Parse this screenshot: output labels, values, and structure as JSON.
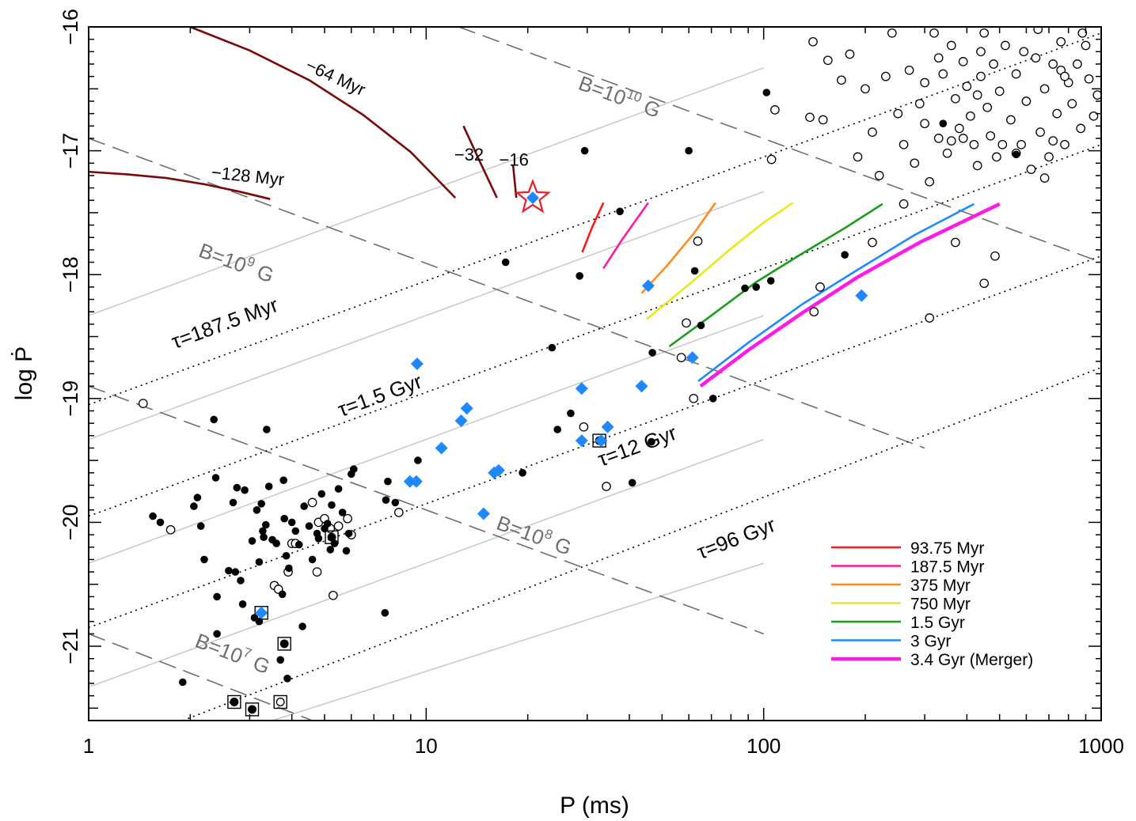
{
  "chart_data": {
    "type": "scatter",
    "xlabel": "P (ms)",
    "ylabel": "log Ṗ",
    "xscale": "log",
    "xlim": [
      1,
      1000
    ],
    "ylim": [
      -21.6,
      -16
    ],
    "x_ticks": [
      "1",
      "10",
      "100",
      "1000"
    ],
    "y_ticks": [
      "−16",
      "−17",
      "−18",
      "−19",
      "−20",
      "−21"
    ],
    "colors": {
      "filled": "#000000",
      "open": "#000000",
      "diamond": "#1e88ff",
      "star": "#e8202a",
      "field_line": "#6e6e6e",
      "age_line": "#000000",
      "grey_line": "#c8c8c8",
      "backward_track": "#7a0a0a"
    },
    "field_lines": [
      {
        "label_base": "B=10",
        "label_exp": "7",
        "label_unit": "G",
        "x": [
          1,
          4.6
        ],
        "y": [
          -20.9,
          -21.6
        ]
      },
      {
        "label_base": "B=10",
        "label_exp": "8",
        "label_unit": "G",
        "x": [
          1,
          100
        ],
        "y": [
          -18.9,
          -20.9
        ]
      },
      {
        "label_base": "B=10",
        "label_exp": "9",
        "label_unit": "G",
        "x": [
          1,
          300
        ],
        "y": [
          -16.9,
          -19.4
        ]
      },
      {
        "label_base": "B=10",
        "label_exp": "10",
        "label_unit": "G",
        "x": [
          12.5,
          1000
        ],
        "y": [
          -16,
          -17.9
        ]
      }
    ],
    "age_lines": [
      {
        "label": "τ=187.5 Myr",
        "x": [
          1,
          1000
        ],
        "y": [
          -19.05,
          -16.05
        ]
      },
      {
        "label": "τ=1.5 Gyr",
        "x": [
          1,
          1000
        ],
        "y": [
          -19.95,
          -16.95
        ]
      },
      {
        "label": "τ=12 Gyr",
        "x": [
          1,
          1000
        ],
        "y": [
          -20.85,
          -17.85
        ]
      },
      {
        "label": "τ=96 Gyr",
        "x": [
          1.9,
          1000
        ],
        "y": [
          -21.6,
          -18.75
        ]
      }
    ],
    "grey_lines": [
      {
        "x": [
          1,
          100
        ],
        "y": [
          -18.33,
          -16.33
        ]
      },
      {
        "x": [
          1,
          100
        ],
        "y": [
          -19.33,
          -17.33
        ]
      },
      {
        "x": [
          1,
          100
        ],
        "y": [
          -20.33,
          -18.33
        ]
      },
      {
        "x": [
          1,
          100
        ],
        "y": [
          -21.33,
          -19.33
        ]
      },
      {
        "x": [
          3.5,
          100
        ],
        "y": [
          -21.6,
          -20.33
        ]
      }
    ],
    "track_labels": [
      {
        "text": "−128 Myr",
        "x": 2.95,
        "y": -17.25,
        "rotate": 6
      },
      {
        "text": "−64 Myr",
        "x": 5.3,
        "y": -16.45,
        "rotate": 25
      },
      {
        "text": "−32",
        "x": 13.4,
        "y": -17.08,
        "rotate": 0
      },
      {
        "text": "−16",
        "x": 18.2,
        "y": -17.12,
        "rotate": 0
      }
    ],
    "backward_tracks": [
      {
        "name": "−128 Myr",
        "x": [
          1,
          1.3,
          1.7,
          2.2,
          2.8,
          3.45
        ],
        "y": [
          -17.17,
          -17.19,
          -17.22,
          -17.27,
          -17.33,
          -17.39
        ]
      },
      {
        "name": "−64 Myr",
        "x": [
          2.0,
          3.0,
          4.5,
          6.5,
          9.0,
          12.2
        ],
        "y": [
          -16.0,
          -16.19,
          -16.43,
          -16.71,
          -17.01,
          -17.38
        ]
      },
      {
        "name": "−32",
        "x": [
          12.9,
          14.5,
          16.2
        ],
        "y": [
          -16.8,
          -17.1,
          -17.38
        ]
      },
      {
        "name": "−16",
        "x": [
          18.1,
          18.5
        ],
        "y": [
          -17.12,
          -17.38
        ]
      }
    ],
    "series": [
      {
        "name": "93.75 Myr",
        "color": "#ff1a1a",
        "x": [
          29,
          31,
          33.5
        ],
        "y": [
          -17.82,
          -17.62,
          -17.42
        ]
      },
      {
        "name": "187.5 Myr",
        "color": "#ff1a9e",
        "x": [
          33.5,
          38,
          45.5
        ],
        "y": [
          -17.95,
          -17.72,
          -17.42
        ]
      },
      {
        "name": "375 Myr",
        "color": "#ff8c1a",
        "x": [
          43.5,
          52,
          62,
          72
        ],
        "y": [
          -18.15,
          -17.92,
          -17.67,
          -17.42
        ]
      },
      {
        "name": "750 Myr",
        "color": "#e8e81a",
        "x": [
          45,
          60,
          80,
          100,
          122
        ],
        "y": [
          -18.36,
          -18.08,
          -17.79,
          -17.58,
          -17.42
        ]
      },
      {
        "name": "1.5 Gyr",
        "color": "#1a9e1a",
        "x": [
          52.5,
          70,
          95,
          130,
          175,
          225
        ],
        "y": [
          -18.58,
          -18.33,
          -18.06,
          -17.83,
          -17.62,
          -17.43
        ]
      },
      {
        "name": "3 Gyr",
        "color": "#1a8cff",
        "x": [
          64,
          90,
          130,
          190,
          280,
          420
        ],
        "y": [
          -18.86,
          -18.55,
          -18.24,
          -17.96,
          -17.68,
          -17.43
        ]
      },
      {
        "name": "3.4 Gyr (Merger)",
        "color": "#ff1ae8",
        "x": [
          65,
          90,
          130,
          190,
          290,
          500
        ],
        "y": [
          -18.9,
          -18.61,
          -18.31,
          -18.02,
          -17.74,
          -17.43
        ]
      }
    ],
    "filled_points": [
      [
        1.55,
        -19.95
      ],
      [
        1.63,
        -20.0
      ],
      [
        1.9,
        -21.29
      ],
      [
        2.05,
        -19.87
      ],
      [
        2.1,
        -19.8
      ],
      [
        2.15,
        -20.03
      ],
      [
        2.2,
        -20.3
      ],
      [
        2.35,
        -19.17
      ],
      [
        2.38,
        -19.64
      ],
      [
        2.4,
        -20.6
      ],
      [
        2.4,
        -20.9
      ],
      [
        2.6,
        -20.39
      ],
      [
        2.68,
        -19.84
      ],
      [
        2.72,
        -20.4
      ],
      [
        2.75,
        -19.72
      ],
      [
        2.82,
        -20.47
      ],
      [
        2.86,
        -20.66
      ],
      [
        3.05,
        -20.15
      ],
      [
        3.1,
        -20.77
      ],
      [
        3.15,
        -19.9
      ],
      [
        3.2,
        -20.8
      ],
      [
        3.2,
        -20.32
      ],
      [
        3.25,
        -19.85
      ],
      [
        3.28,
        -20.07
      ],
      [
        3.35,
        -20.02
      ],
      [
        3.37,
        -19.25
      ],
      [
        3.42,
        -19.71
      ],
      [
        3.5,
        -20.14
      ],
      [
        3.6,
        -20.17
      ],
      [
        3.7,
        -21.11
      ],
      [
        3.75,
        -20.58
      ],
      [
        3.78,
        -19.66
      ],
      [
        3.8,
        -19.97
      ],
      [
        3.85,
        -20.27
      ],
      [
        3.88,
        -21.26
      ],
      [
        3.92,
        -20.37
      ],
      [
        4.0,
        -20.0
      ],
      [
        4.1,
        -20.07
      ],
      [
        4.2,
        -20.18
      ],
      [
        4.3,
        -20.84
      ],
      [
        4.35,
        -19.87
      ],
      [
        4.5,
        -20.03
      ],
      [
        4.6,
        -20.3
      ],
      [
        4.75,
        -20.09
      ],
      [
        4.8,
        -20.13
      ],
      [
        4.9,
        -19.77
      ],
      [
        5.0,
        -20.05
      ],
      [
        5.1,
        -20.01
      ],
      [
        5.2,
        -20.22
      ],
      [
        5.25,
        -19.86
      ],
      [
        5.35,
        -20.17
      ],
      [
        5.5,
        -19.73
      ],
      [
        5.65,
        -19.92
      ],
      [
        5.8,
        -20.23
      ],
      [
        5.9,
        -20.09
      ],
      [
        6.0,
        -19.61
      ],
      [
        6.1,
        -19.57
      ],
      [
        7.55,
        -20.73
      ],
      [
        7.6,
        -19.82
      ],
      [
        7.7,
        -19.67
      ],
      [
        8.1,
        -19.84
      ],
      [
        9.45,
        -19.5
      ],
      [
        19.3,
        -19.6
      ],
      [
        23.6,
        -18.59
      ],
      [
        24.5,
        -19.25
      ],
      [
        26.8,
        -19.12
      ],
      [
        28.5,
        -18.01
      ],
      [
        29.5,
        -17.0
      ],
      [
        40.8,
        -19.68
      ],
      [
        46.5,
        -19.35
      ],
      [
        46.8,
        -18.63
      ],
      [
        62.5,
        -17.97
      ],
      [
        65.2,
        -18.41
      ],
      [
        70.8,
        -19.0
      ],
      [
        88,
        -18.11
      ],
      [
        95,
        -18.1
      ],
      [
        105,
        -18.05
      ],
      [
        102,
        -16.53
      ],
      [
        174,
        -17.84
      ],
      [
        340,
        -16.78
      ],
      [
        560,
        -17.03
      ],
      [
        60,
        -17.0
      ],
      [
        37.5,
        -17.49
      ],
      [
        17.2,
        -17.9
      ],
      [
        3.3,
        -20.12
      ],
      [
        2.9,
        -19.74
      ]
    ],
    "open_points": [
      [
        1.45,
        -19.04
      ],
      [
        1.75,
        -20.06
      ],
      [
        3.55,
        -20.51
      ],
      [
        3.65,
        -20.54
      ],
      [
        3.9,
        -20.4
      ],
      [
        4.0,
        -20.17
      ],
      [
        4.1,
        -20.17
      ],
      [
        4.6,
        -19.84
      ],
      [
        4.75,
        -20.4
      ],
      [
        4.8,
        -20.0
      ],
      [
        5.0,
        -19.97
      ],
      [
        5.2,
        -20.05
      ],
      [
        5.3,
        -20.59
      ],
      [
        5.5,
        -20.03
      ],
      [
        5.85,
        -19.97
      ],
      [
        6.0,
        -20.1
      ],
      [
        8.3,
        -19.92
      ],
      [
        29.3,
        -19.23
      ],
      [
        34.2,
        -19.71
      ],
      [
        57,
        -18.67
      ],
      [
        59,
        -18.39
      ],
      [
        62,
        -19.0
      ],
      [
        63.8,
        -17.73
      ],
      [
        105.5,
        -17.07
      ],
      [
        108,
        -16.67
      ],
      [
        137,
        -16.73
      ],
      [
        141,
        -18.3
      ],
      [
        147,
        -18.1
      ],
      [
        210,
        -17.74
      ],
      [
        260,
        -17.43
      ],
      [
        310,
        -18.35
      ],
      [
        370,
        -17.74
      ],
      [
        450,
        -18.07
      ],
      [
        485,
        -17.85
      ],
      [
        140,
        -16.12
      ],
      [
        150,
        -16.75
      ],
      [
        155,
        -16.27
      ],
      [
        170,
        -16.43
      ],
      [
        180,
        -16.22
      ],
      [
        190,
        -17.05
      ],
      [
        200,
        -16.5
      ],
      [
        210,
        -16.85
      ],
      [
        220,
        -17.2
      ],
      [
        230,
        -16.4
      ],
      [
        240,
        -16.05
      ],
      [
        250,
        -16.7
      ],
      [
        260,
        -16.95
      ],
      [
        270,
        -16.35
      ],
      [
        280,
        -17.1
      ],
      [
        290,
        -16.62
      ],
      [
        300,
        -16.45
      ],
      [
        310,
        -17.25
      ],
      [
        320,
        -16.05
      ],
      [
        330,
        -16.9
      ],
      [
        340,
        -16.38
      ],
      [
        350,
        -17.02
      ],
      [
        360,
        -16.15
      ],
      [
        370,
        -16.58
      ],
      [
        380,
        -16.82
      ],
      [
        390,
        -16.28
      ],
      [
        400,
        -16.48
      ],
      [
        410,
        -16.72
      ],
      [
        420,
        -16.95
      ],
      [
        430,
        -17.12
      ],
      [
        440,
        -16.4
      ],
      [
        450,
        -16.05
      ],
      [
        460,
        -16.65
      ],
      [
        470,
        -16.88
      ],
      [
        480,
        -16.3
      ],
      [
        490,
        -17.05
      ],
      [
        500,
        -16.52
      ],
      [
        520,
        -16.15
      ],
      [
        540,
        -16.75
      ],
      [
        560,
        -16.38
      ],
      [
        580,
        -16.95
      ],
      [
        600,
        -16.6
      ],
      [
        620,
        -17.15
      ],
      [
        640,
        -16.25
      ],
      [
        660,
        -16.85
      ],
      [
        680,
        -16.5
      ],
      [
        700,
        -17.05
      ],
      [
        720,
        -16.3
      ],
      [
        740,
        -16.7
      ],
      [
        760,
        -16.12
      ],
      [
        780,
        -16.95
      ],
      [
        800,
        -16.45
      ],
      [
        820,
        -16.62
      ],
      [
        850,
        -16.3
      ],
      [
        870,
        -16.82
      ],
      [
        900,
        -16.15
      ],
      [
        920,
        -16.42
      ],
      [
        950,
        -16.72
      ],
      [
        975,
        -16.55
      ],
      [
        330,
        -16.25
      ],
      [
        390,
        -16.9
      ],
      [
        430,
        -16.55
      ],
      [
        510,
        -16.95
      ],
      [
        590,
        -16.2
      ],
      [
        680,
        -17.22
      ],
      [
        760,
        -16.35
      ],
      [
        880,
        -16.05
      ],
      [
        300,
        -16.78
      ],
      [
        360,
        -16.92
      ],
      [
        440,
        -16.2
      ],
      [
        560,
        -17.02
      ],
      [
        650,
        -16.02
      ],
      [
        720,
        -16.92
      ],
      [
        780,
        -16.4
      ]
    ],
    "diamond_points": [
      [
        20.7,
        -17.38
      ],
      [
        9.4,
        -18.72
      ],
      [
        8.95,
        -19.67
      ],
      [
        9.35,
        -19.67
      ],
      [
        11.1,
        -19.4
      ],
      [
        12.7,
        -19.18
      ],
      [
        13.2,
        -19.08
      ],
      [
        14.8,
        -19.93
      ],
      [
        15.9,
        -19.6
      ],
      [
        16.4,
        -19.58
      ],
      [
        28.9,
        -18.92
      ],
      [
        28.9,
        -19.34
      ],
      [
        33,
        -19.34
      ],
      [
        34.5,
        -19.23
      ],
      [
        43.5,
        -18.9
      ],
      [
        45.5,
        -18.09
      ],
      [
        61.5,
        -18.67
      ],
      [
        195,
        -18.17
      ],
      [
        3.25,
        -20.73
      ]
    ],
    "boxed_points": [
      {
        "x": 32.6,
        "y": -19.34,
        "filled": true
      },
      {
        "x": 5.25,
        "y": -20.12,
        "filled": true
      },
      {
        "x": 3.25,
        "y": -20.73,
        "filled": false
      },
      {
        "x": 3.8,
        "y": -20.98,
        "filled": true
      },
      {
        "x": 2.7,
        "y": -21.45,
        "filled": true
      },
      {
        "x": 3.05,
        "y": -21.51,
        "filled": true
      },
      {
        "x": 3.7,
        "y": -21.45,
        "filled": false
      }
    ],
    "star_point": {
      "x": 20.7,
      "y": -17.38
    },
    "legend_position": "bottom-right"
  }
}
